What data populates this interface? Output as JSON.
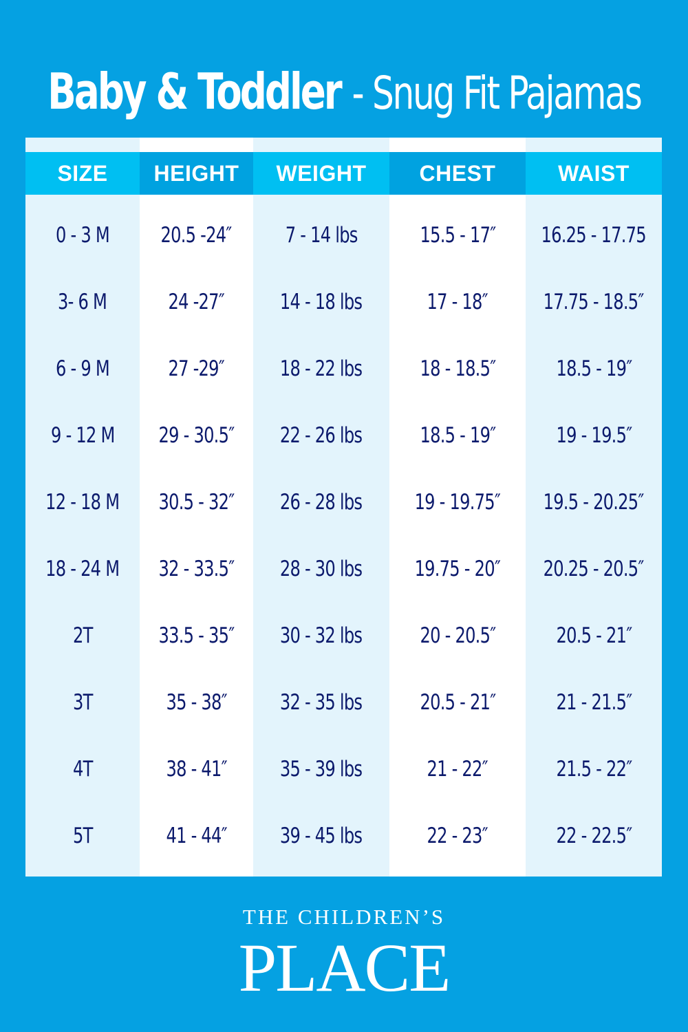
{
  "title": {
    "main": "Baby & Toddler",
    "sub": "- Snug Fit Pajamas"
  },
  "colors": {
    "background": "#05a1e2",
    "header_light": "#00bff2",
    "header_dark": "#00a2e0",
    "column_light": "#e3f4fc",
    "text": "#0c1a6c"
  },
  "table": {
    "headers": [
      "SIZE",
      "HEIGHT",
      "WEIGHT",
      "CHEST",
      "WAIST"
    ],
    "rows": [
      [
        "0 - 3 M",
        "20.5 -24″",
        "7 - 14 lbs",
        "15.5 - 17″",
        "16.25 - 17.75"
      ],
      [
        "3- 6 M",
        "24 -27″",
        "14 - 18 lbs",
        "17 - 18″",
        "17.75 - 18.5″"
      ],
      [
        "6 - 9 M",
        "27 -29″",
        "18 - 22 lbs",
        "18 - 18.5″",
        "18.5 - 19″"
      ],
      [
        "9 - 12 M",
        "29 - 30.5″",
        "22 - 26 lbs",
        "18.5 - 19″",
        "19 - 19.5″"
      ],
      [
        "12  - 18 M",
        "30.5 - 32″",
        "26 - 28 lbs",
        "19 - 19.75″",
        "19.5 - 20.25″"
      ],
      [
        "18 - 24 M",
        "32 - 33.5″",
        "28 - 30 lbs",
        "19.75 - 20″",
        "20.25 - 20.5″"
      ],
      [
        "2T",
        "33.5 - 35″",
        "30 - 32 lbs",
        "20 - 20.5″",
        "20.5 - 21″"
      ],
      [
        "3T",
        "35 - 38″",
        "32 - 35 lbs",
        "20.5 - 21″",
        "21 - 21.5″"
      ],
      [
        "4T",
        "38 - 41″",
        "35 - 39 lbs",
        "21 - 22″",
        "21.5 - 22″"
      ],
      [
        "5T",
        "41 - 44″",
        "39 - 45 lbs",
        "22 - 23″",
        "22 - 22.5″"
      ]
    ]
  },
  "logo": {
    "line1": "THE CHILDREN’S",
    "line2": "PLACE"
  }
}
